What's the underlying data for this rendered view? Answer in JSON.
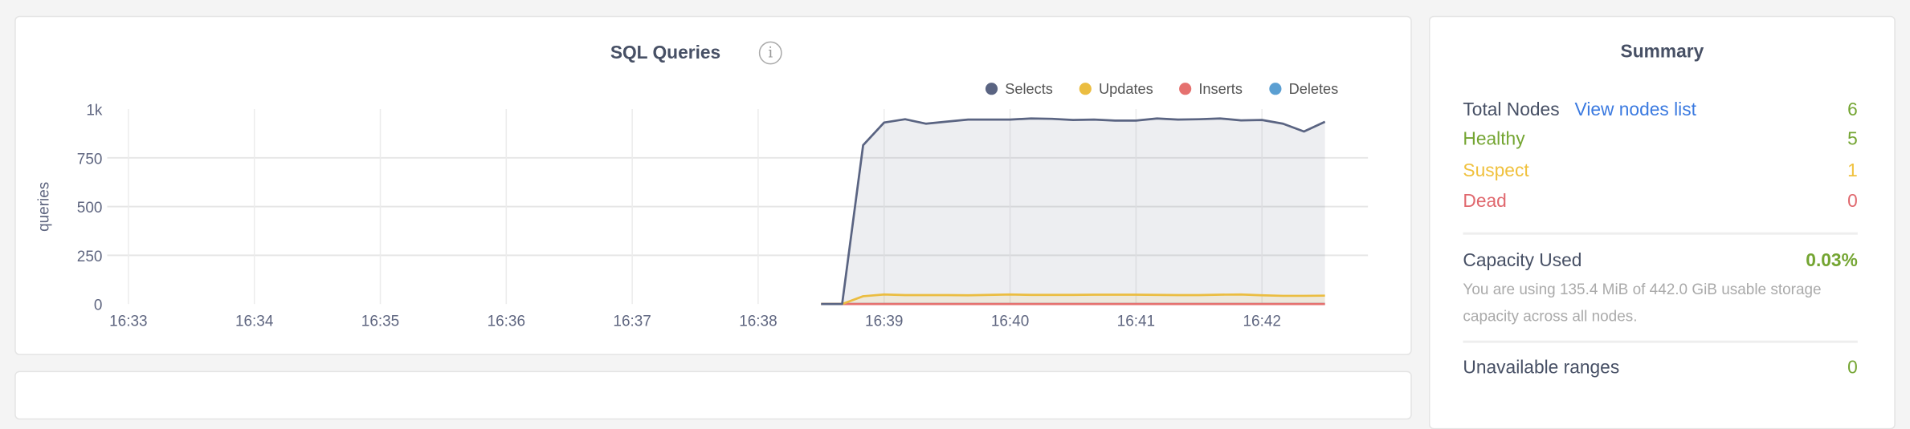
{
  "chart_card": {
    "title": "SQL Queries",
    "info_icon": "info-circle-icon"
  },
  "chart_data": {
    "type": "area",
    "title": "SQL Queries",
    "ylabel": "queries",
    "xlabel": "",
    "ylim": [
      0,
      1000
    ],
    "y_ticks": [
      "0",
      "250",
      "500",
      "750",
      "1k"
    ],
    "y_tick_values": [
      0,
      250,
      500,
      750,
      1000
    ],
    "x_ticks": [
      "16:33",
      "16:34",
      "16:35",
      "16:36",
      "16:37",
      "16:38",
      "16:39",
      "16:40",
      "16:41",
      "16:42"
    ],
    "xlim": [
      "16:32:50",
      "16:43:00"
    ],
    "grid": true,
    "legend_position": "top-right",
    "x": [
      "16:38:30",
      "16:38:40",
      "16:38:50",
      "16:39:00",
      "16:39:10",
      "16:39:20",
      "16:39:30",
      "16:39:40",
      "16:39:50",
      "16:40:00",
      "16:40:10",
      "16:40:20",
      "16:40:30",
      "16:40:40",
      "16:40:50",
      "16:41:00",
      "16:41:10",
      "16:41:20",
      "16:41:30",
      "16:41:40",
      "16:41:50",
      "16:42:00",
      "16:42:10",
      "16:42:20",
      "16:42:30"
    ],
    "series": [
      {
        "name": "Selects",
        "color": "#5a6482",
        "values": [
          0,
          0,
          815,
          931,
          948,
          925,
          936,
          946,
          946,
          946,
          952,
          950,
          944,
          946,
          941,
          941,
          952,
          946,
          948,
          952,
          942,
          944,
          925,
          885,
          935
        ]
      },
      {
        "name": "Updates",
        "color": "#ebbd41",
        "values": [
          0,
          0,
          40,
          49,
          46,
          46,
          46,
          45,
          47,
          49,
          47,
          47,
          47,
          48,
          48,
          48,
          47,
          46,
          46,
          48,
          49,
          45,
          42,
          42,
          43
        ]
      },
      {
        "name": "Inserts",
        "color": "#e5716f",
        "values": [
          0,
          0,
          0,
          0,
          0,
          0,
          0,
          0,
          0,
          0,
          0,
          0,
          0,
          0,
          0,
          0,
          0,
          0,
          0,
          0,
          0,
          0,
          0,
          0,
          0
        ]
      },
      {
        "name": "Deletes",
        "color": "#5b9fd2",
        "values": [
          0,
          0,
          0,
          0,
          0,
          0,
          0,
          0,
          0,
          0,
          0,
          0,
          0,
          0,
          0,
          0,
          0,
          0,
          0,
          0,
          0,
          0,
          0,
          0,
          0
        ]
      }
    ]
  },
  "summary": {
    "title": "Summary",
    "total_nodes_label": "Total Nodes",
    "view_nodes_link": "View nodes list",
    "total_nodes": "6",
    "healthy_label": "Healthy",
    "healthy": "5",
    "suspect_label": "Suspect",
    "suspect": "1",
    "dead_label": "Dead",
    "dead": "0",
    "capacity_label": "Capacity Used",
    "capacity_value": "0.03%",
    "capacity_desc": "You are using 135.4 MiB of 442.0 GiB usable storage capacity across all nodes.",
    "unavailable_label": "Unavailable ranges",
    "unavailable": "0"
  },
  "colors": {
    "green": "#74a532",
    "link": "#3b7ae0",
    "suspect": "#f0c13d",
    "dead": "#e0686e",
    "text": "#475065"
  }
}
